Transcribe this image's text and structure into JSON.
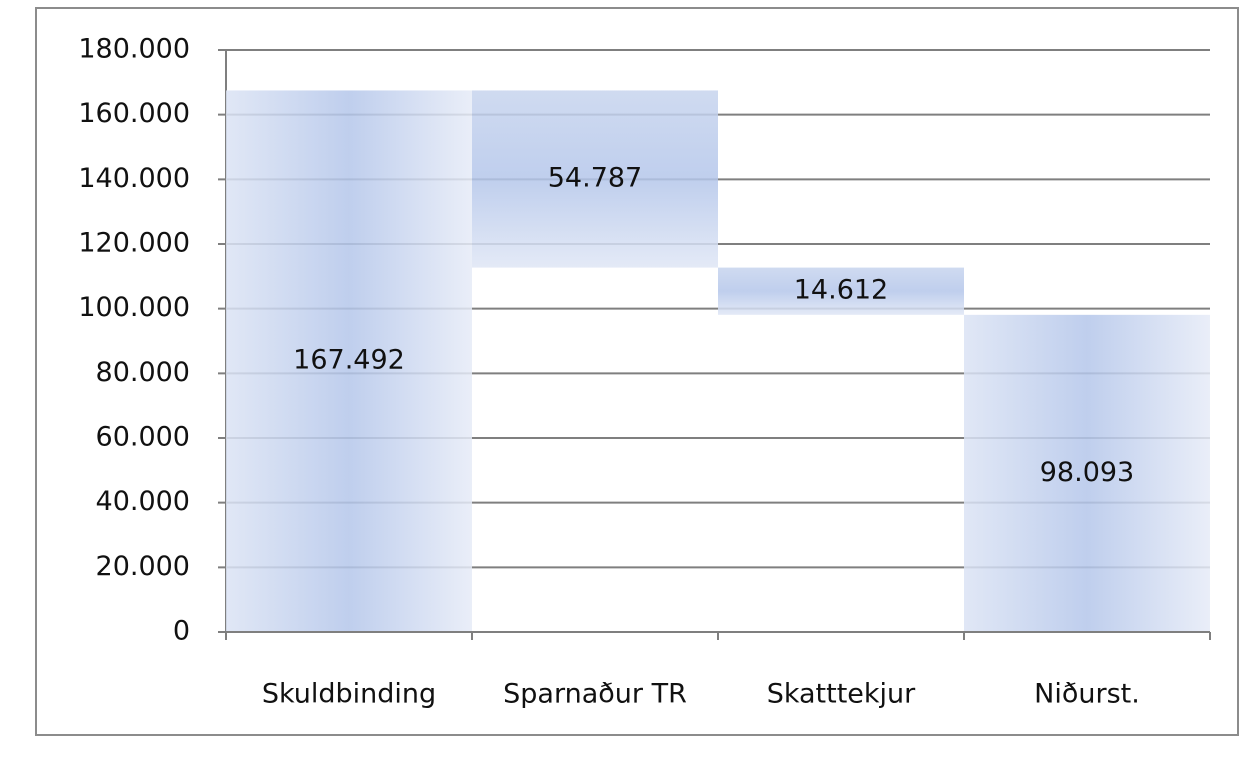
{
  "chart_data": {
    "type": "waterfall",
    "categories": [
      "Skuldbinding",
      "Sparnaður TR",
      "Skatttekjur",
      "Niðurst."
    ],
    "measures": [
      "absolute",
      "decrease",
      "decrease",
      "total"
    ],
    "values": [
      167492,
      54787,
      14612,
      98093
    ],
    "value_labels": [
      "167.492",
      "54.787",
      "14.612",
      "98.093"
    ],
    "color": "#b4c6ea",
    "ylim": [
      0,
      180000
    ],
    "yticks": [
      {
        "value": 0,
        "label": "0"
      },
      {
        "value": 20000,
        "label": "20.000"
      },
      {
        "value": 40000,
        "label": "40.000"
      },
      {
        "value": 60000,
        "label": "60.000"
      },
      {
        "value": 80000,
        "label": "80.000"
      },
      {
        "value": 100000,
        "label": "100.000"
      },
      {
        "value": 120000,
        "label": "120.000"
      },
      {
        "value": 140000,
        "label": "140.000"
      },
      {
        "value": 160000,
        "label": "160.000"
      },
      {
        "value": 180000,
        "label": "180.000"
      }
    ],
    "grid": true
  }
}
